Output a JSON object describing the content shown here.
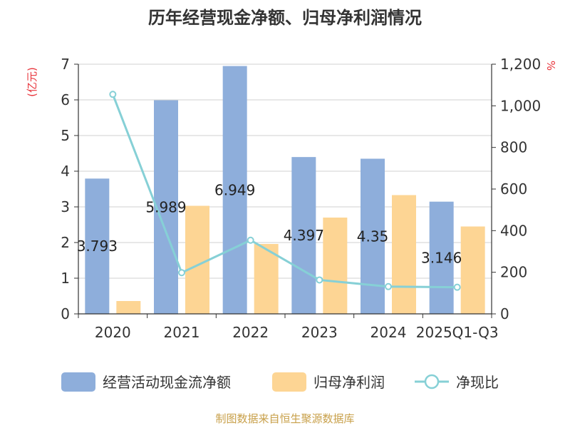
{
  "chart_data": {
    "type": "bar+line",
    "title": "历年经营现金净额、归母净利润情况",
    "categories": [
      "2020",
      "2021",
      "2022",
      "2023",
      "2024",
      "2025Q1-Q3"
    ],
    "left_axis": {
      "unit": "(亿元)",
      "ylim": [
        0,
        7
      ],
      "ticks": [
        "0",
        "1",
        "2",
        "3",
        "4",
        "5",
        "6",
        "7"
      ]
    },
    "right_axis": {
      "unit": "%",
      "ylim": [
        0,
        1200
      ],
      "ticks": [
        "0",
        "200",
        "400",
        "600",
        "800",
        "1,000",
        "1,200"
      ]
    },
    "series": [
      {
        "name": "经营活动现金流净额",
        "type": "bar",
        "axis": "left",
        "color": "#8eaedb",
        "values": [
          3.793,
          5.989,
          6.949,
          4.397,
          4.35,
          3.146
        ],
        "labels": [
          "3.793",
          "5.989",
          "6.949",
          "4.397",
          "4.35",
          "3.146"
        ]
      },
      {
        "name": "归母净利润",
        "type": "bar",
        "axis": "left",
        "color": "#fdd594",
        "values": [
          0.36,
          3.03,
          1.96,
          2.7,
          3.33,
          2.45
        ]
      },
      {
        "name": "净现比",
        "type": "line",
        "axis": "right",
        "color": "#86d0d6",
        "values": [
          1055,
          198,
          354,
          163,
          131,
          128
        ]
      }
    ],
    "grid": true,
    "legend": "bottom"
  },
  "footer": {
    "source": "制图数据来自恒生聚源数据库"
  }
}
